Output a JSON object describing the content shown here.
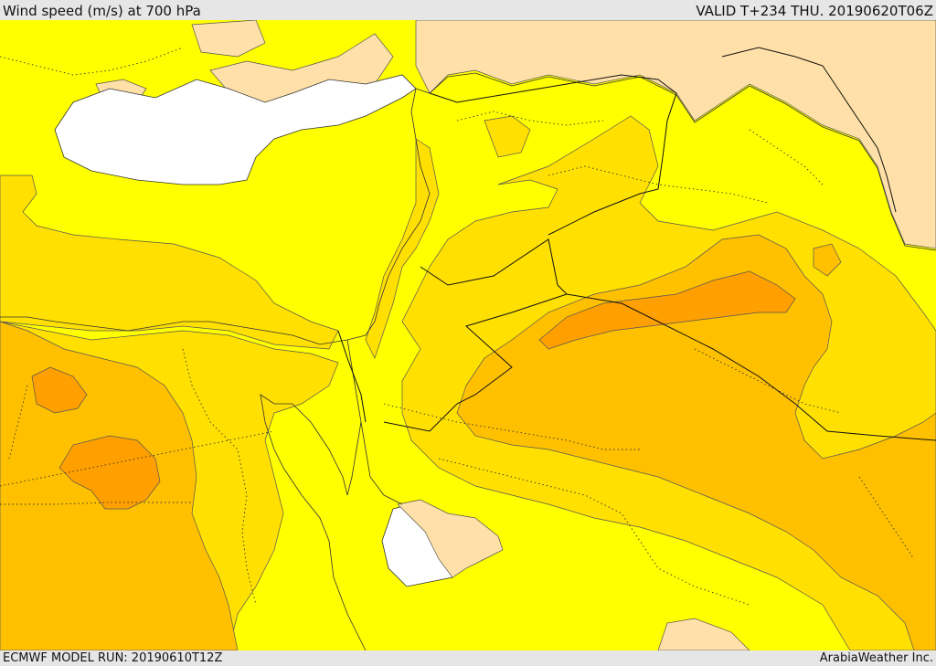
{
  "header": {
    "title": "Wind speed (m/s) at 700 hPa",
    "valid": "VALID T+234 THU. 20190620T06Z"
  },
  "footer": {
    "model_run": "ECMWF MODEL RUN: 20190610T12Z",
    "credit": "ArabiaWeather Inc."
  },
  "colors": {
    "background": "#e6e6e6",
    "sea": "#ffffff",
    "calm": "#ffe0a8",
    "level_1": "#ffff00",
    "level_2": "#ffe000",
    "level_3": "#ffc000",
    "level_4": "#ff9f00"
  }
}
